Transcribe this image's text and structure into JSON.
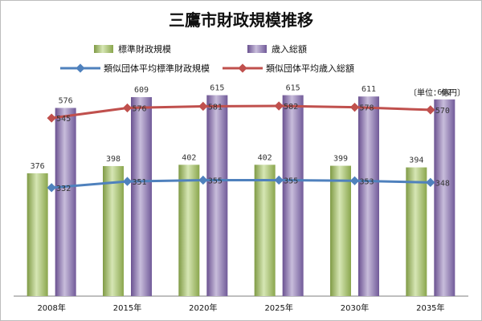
{
  "chart_data": {
    "type": "bar",
    "title": "三鷹市財政規模推移",
    "unit_label": "〔単位：億円〕",
    "categories": [
      "2008年",
      "2015年",
      "2020年",
      "2025年",
      "2030年",
      "2035年"
    ],
    "ylim": [
      0,
      700
    ],
    "grid": false,
    "legend_position": "top",
    "series": [
      {
        "name": "標準財政規模",
        "kind": "bar",
        "color": "#9bbb59",
        "values": [
          376,
          398,
          402,
          402,
          399,
          394
        ]
      },
      {
        "name": "歳入総額",
        "kind": "bar",
        "color": "#8064a2",
        "values": [
          576,
          609,
          615,
          615,
          611,
          602
        ]
      },
      {
        "name": "類似団体平均標準財政規模",
        "kind": "line",
        "color": "#4f81bd",
        "marker": "diamond",
        "values": [
          332,
          351,
          355,
          355,
          353,
          348
        ]
      },
      {
        "name": "類似団体平均歳入総額",
        "kind": "line",
        "color": "#c0504d",
        "marker": "diamond",
        "values": [
          545,
          576,
          581,
          582,
          578,
          570
        ]
      }
    ]
  }
}
